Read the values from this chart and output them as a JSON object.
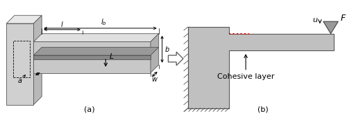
{
  "fig_width": 5.0,
  "fig_height": 1.68,
  "dpi": 100,
  "bg_color": "#ffffff",
  "gray_mid": "#c0c0c0",
  "gray_light": "#d8d8d8",
  "gray_dark": "#a0a0a0",
  "gray_darkest": "#888888",
  "label_a": "(a)",
  "label_b": "(b)",
  "cohesive_label": "Cohesive layer",
  "F_label": "F",
  "u_label": "u"
}
